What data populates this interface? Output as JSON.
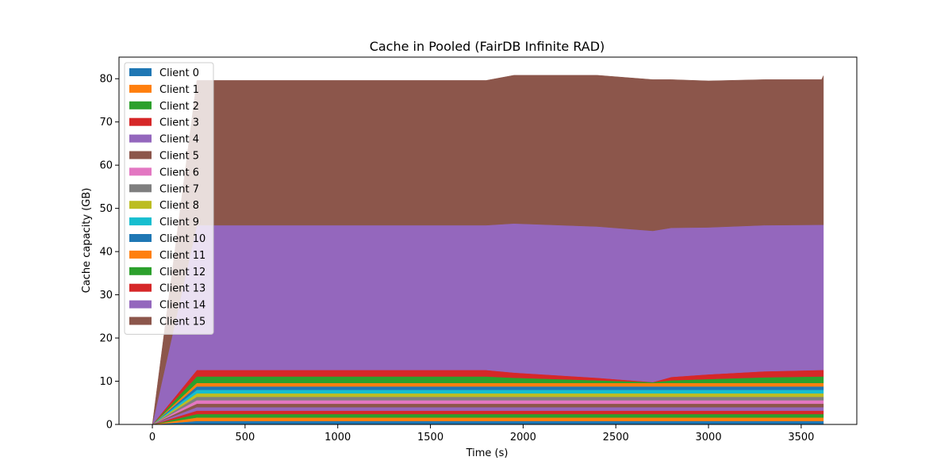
{
  "chart_data": {
    "type": "area",
    "stacked": true,
    "title": "Cache in  Pooled (FairDB Infinite RAD)",
    "xlabel": "Time (s)",
    "ylabel": "Cache capacity (GB)",
    "xlim": [
      -180,
      3800
    ],
    "ylim": [
      0,
      85
    ],
    "xticks": [
      0,
      500,
      1000,
      1500,
      2000,
      2500,
      3000,
      3500
    ],
    "yticks": [
      0,
      10,
      20,
      30,
      40,
      50,
      60,
      70,
      80
    ],
    "grid": false,
    "legend": "top-left",
    "x": [
      0,
      240,
      1800,
      1950,
      2400,
      2700,
      2800,
      3000,
      3300,
      3610,
      3620
    ],
    "series": [
      {
        "name": "Client 0",
        "color": "#1f77b4",
        "values": [
          0,
          0.8,
          0.8,
          0.8,
          0.8,
          0.8,
          0.8,
          0.8,
          0.8,
          0.8,
          0.8
        ]
      },
      {
        "name": "Client 1",
        "color": "#ff7f0e",
        "values": [
          0,
          0.8,
          0.8,
          0.8,
          0.8,
          0.8,
          0.8,
          0.8,
          0.8,
          0.8,
          0.8
        ]
      },
      {
        "name": "Client 2",
        "color": "#2ca02c",
        "values": [
          0,
          0.8,
          0.8,
          0.8,
          0.8,
          0.8,
          0.8,
          0.8,
          0.8,
          0.8,
          0.8
        ]
      },
      {
        "name": "Client 3",
        "color": "#d62728",
        "values": [
          0,
          0.8,
          0.8,
          0.8,
          0.8,
          0.8,
          0.8,
          0.8,
          0.8,
          0.8,
          0.8
        ]
      },
      {
        "name": "Client 4",
        "color": "#9467bd",
        "values": [
          0,
          0.8,
          0.8,
          0.8,
          0.8,
          0.8,
          0.8,
          0.8,
          0.8,
          0.8,
          0.8
        ]
      },
      {
        "name": "Client 5",
        "color": "#8c564b",
        "values": [
          0,
          0.8,
          0.8,
          0.8,
          0.8,
          0.8,
          0.8,
          0.8,
          0.8,
          0.8,
          0.8
        ]
      },
      {
        "name": "Client 6",
        "color": "#e377c2",
        "values": [
          0,
          0.8,
          0.8,
          0.8,
          0.8,
          0.8,
          0.8,
          0.8,
          0.8,
          0.8,
          0.8
        ]
      },
      {
        "name": "Client 7",
        "color": "#7f7f7f",
        "values": [
          0,
          0.8,
          0.8,
          0.8,
          0.8,
          0.8,
          0.8,
          0.8,
          0.8,
          0.8,
          0.8
        ]
      },
      {
        "name": "Client 8",
        "color": "#bcbd22",
        "values": [
          0,
          0.8,
          0.8,
          0.8,
          0.8,
          0.8,
          0.8,
          0.8,
          0.8,
          0.8,
          0.8
        ]
      },
      {
        "name": "Client 9",
        "color": "#17becf",
        "values": [
          0,
          0.8,
          0.8,
          0.8,
          0.8,
          0.8,
          0.8,
          0.8,
          0.8,
          0.8,
          0.8
        ]
      },
      {
        "name": "Client 10",
        "color": "#1f77b4",
        "values": [
          0,
          0.8,
          0.8,
          0.8,
          0.8,
          0.8,
          0.8,
          0.8,
          0.8,
          0.8,
          0.8
        ]
      },
      {
        "name": "Client 11",
        "color": "#ff7f0e",
        "values": [
          0,
          0.8,
          0.8,
          0.8,
          0.8,
          0.8,
          0.8,
          0.8,
          0.8,
          0.8,
          0.8
        ]
      },
      {
        "name": "Client 12",
        "color": "#2ca02c",
        "values": [
          0,
          1.5,
          1.5,
          1.2,
          0.6,
          0.2,
          0.6,
          0.9,
          1.3,
          1.5,
          1.5
        ]
      },
      {
        "name": "Client 13",
        "color": "#d62728",
        "values": [
          0,
          1.5,
          1.5,
          1.2,
          0.6,
          0.0,
          0.8,
          1.1,
          1.4,
          1.5,
          1.5
        ]
      },
      {
        "name": "Client 14",
        "color": "#9467bd",
        "values": [
          0,
          33.5,
          33.5,
          34.5,
          35.0,
          35.0,
          34.5,
          34.0,
          33.8,
          33.6,
          33.6
        ]
      },
      {
        "name": "Client 15",
        "color": "#8c564b",
        "values": [
          0,
          33.5,
          33.5,
          34.3,
          35.0,
          35.0,
          34.3,
          33.9,
          33.7,
          33.6,
          34.5
        ]
      }
    ]
  }
}
